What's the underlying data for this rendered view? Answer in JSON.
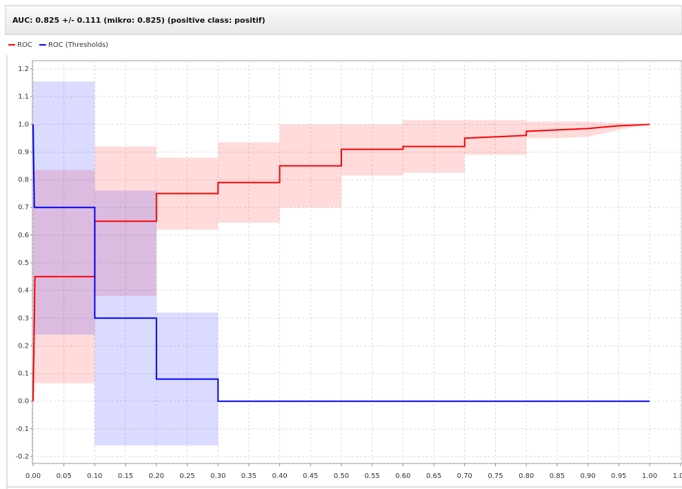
{
  "chart_data": {
    "type": "line",
    "title": "AUC: 0.825 +/- 0.111 (mikro: 0.825) (positive class: positif)",
    "series": [
      {
        "name": "ROC",
        "color": "#ff0000",
        "x": [
          0,
          0.003,
          0.1,
          0.1,
          0.2,
          0.2,
          0.3,
          0.3,
          0.4,
          0.4,
          0.5,
          0.5,
          0.6,
          0.6,
          0.7,
          0.7,
          0.75,
          0.8,
          0.8,
          0.85,
          0.9,
          0.95,
          1.0
        ],
        "values": [
          0,
          0.45,
          0.45,
          0.65,
          0.65,
          0.75,
          0.75,
          0.79,
          0.79,
          0.85,
          0.85,
          0.91,
          0.91,
          0.92,
          0.92,
          0.95,
          0.955,
          0.96,
          0.975,
          0.98,
          0.985,
          0.995,
          1.0
        ],
        "lower": [
          0.065,
          0.065,
          0.065,
          0.38,
          0.38,
          0.62,
          0.62,
          0.645,
          0.645,
          0.7,
          0.7,
          0.815,
          0.815,
          0.825,
          0.825,
          0.89,
          0.89,
          0.89,
          0.95,
          0.95,
          0.955,
          0.98,
          1.0
        ],
        "upper": [
          0.835,
          0.835,
          0.835,
          0.92,
          0.92,
          0.88,
          0.88,
          0.935,
          0.935,
          1.0,
          1.0,
          1.0,
          1.0,
          1.015,
          1.015,
          1.015,
          1.015,
          1.015,
          1.01,
          1.01,
          1.01,
          1.005,
          1.0
        ]
      },
      {
        "name": "ROC (Thresholds)",
        "color": "#0000ff",
        "x": [
          0,
          0.002,
          0.1,
          0.1,
          0.2,
          0.2,
          0.3,
          0.3,
          1.0
        ],
        "values": [
          1.0,
          0.7,
          0.7,
          0.3,
          0.3,
          0.08,
          0.08,
          0,
          0
        ],
        "lower": [
          0.24,
          0.24,
          0.24,
          -0.16,
          -0.16,
          -0.16,
          -0.16,
          0,
          0
        ],
        "upper": [
          1.155,
          1.155,
          1.155,
          0.76,
          0.76,
          0.32,
          0.32,
          0,
          0
        ]
      }
    ],
    "xlim": [
      0,
      1.05
    ],
    "xticks": [
      {
        "value": 0,
        "label": "0.00"
      },
      0.05,
      {
        "value": 0.1,
        "label": "0.10"
      },
      0.15,
      {
        "value": 0.2,
        "label": "0.20"
      },
      0.25,
      {
        "value": 0.3,
        "label": "0.30"
      },
      0.35,
      {
        "value": 0.4,
        "label": "0.40"
      },
      0.45,
      {
        "value": 0.5,
        "label": "0.50"
      },
      0.55,
      {
        "value": 0.6,
        "label": "0.60"
      },
      0.65,
      {
        "value": 0.7,
        "label": "0.70"
      },
      0.75,
      {
        "value": 0.8,
        "label": "0.80"
      },
      0.85,
      {
        "value": 0.9,
        "label": "0.90"
      },
      0.95,
      {
        "value": 1.0,
        "label": "1.00"
      },
      1.05
    ],
    "ylim": [
      -0.225,
      1.23
    ],
    "yticks": [
      -0.2,
      -0.1,
      {
        "value": 0,
        "label": "0.0"
      },
      0.1,
      0.2,
      0.3,
      0.4,
      0.5,
      0.6,
      0.7,
      0.8,
      0.9,
      {
        "value": 1.0,
        "label": "1.0"
      },
      1.1,
      1.2
    ],
    "grid": true
  }
}
